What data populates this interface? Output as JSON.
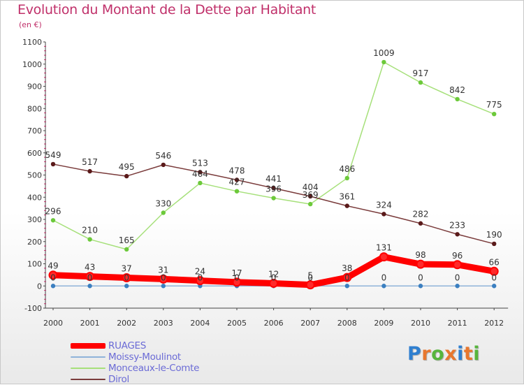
{
  "title": "Evolution du Montant de la Dette par Habitant",
  "subtitle": "(en €)",
  "logo": {
    "text": "Proxiti",
    "letter_colors": [
      "#2f7fd0",
      "#e8772e",
      "#57b53c",
      "#e8772e",
      "#2f7fd0",
      "#e8772e",
      "#57b53c"
    ]
  },
  "chart_data": {
    "type": "line",
    "x": [
      "2000",
      "2001",
      "2002",
      "2003",
      "2004",
      "2005",
      "2006",
      "2007",
      "2008",
      "2009",
      "2010",
      "2011",
      "2012"
    ],
    "ylim": [
      -100,
      1100
    ],
    "yticks": [
      "-100",
      "0",
      "100",
      "200",
      "300",
      "400",
      "500",
      "600",
      "700",
      "800",
      "900",
      "1000",
      "1100"
    ],
    "grid": false,
    "legend_position": "bottom-left",
    "series": [
      {
        "name": "RUAGES",
        "color": "#ff0000",
        "marker_color": "#ff2a2a",
        "values": [
          49,
          43,
          37,
          31,
          24,
          17,
          12,
          5,
          38,
          131,
          98,
          96,
          66
        ],
        "labels": [
          "49",
          "43",
          "37",
          "31",
          "24",
          "17",
          "12",
          "5",
          "38",
          "131",
          "98",
          "96",
          "66"
        ]
      },
      {
        "name": "Moissy-Moulinot",
        "color": "#8fb3d9",
        "marker_color": "#3b7fc0",
        "values": [
          0,
          0,
          0,
          0,
          0,
          0,
          0,
          0,
          0,
          0,
          0,
          0,
          0
        ],
        "labels": [
          "0",
          "0",
          "0",
          "0",
          "0",
          "0",
          "0",
          "0",
          "0",
          "0",
          "0",
          "0",
          "0"
        ]
      },
      {
        "name": "Monceaux-le-Comte",
        "color": "#a6e07a",
        "marker_color": "#6cc93a",
        "values": [
          296,
          210,
          165,
          330,
          464,
          427,
          396,
          369,
          486,
          1009,
          917,
          842,
          775
        ],
        "labels": [
          "296",
          "210",
          "165",
          "330",
          "464",
          "427",
          "396",
          "369",
          "486",
          "1009",
          "917",
          "842",
          "775"
        ]
      },
      {
        "name": "Dirol",
        "color": "#7a3b3b",
        "marker_color": "#5a1a1a",
        "values": [
          549,
          517,
          495,
          546,
          513,
          478,
          441,
          404,
          361,
          324,
          282,
          233,
          190
        ],
        "labels": [
          "549",
          "517",
          "495",
          "546",
          "513",
          "478",
          "441",
          "404",
          "361",
          "324",
          "282",
          "233",
          "190"
        ]
      }
    ]
  }
}
